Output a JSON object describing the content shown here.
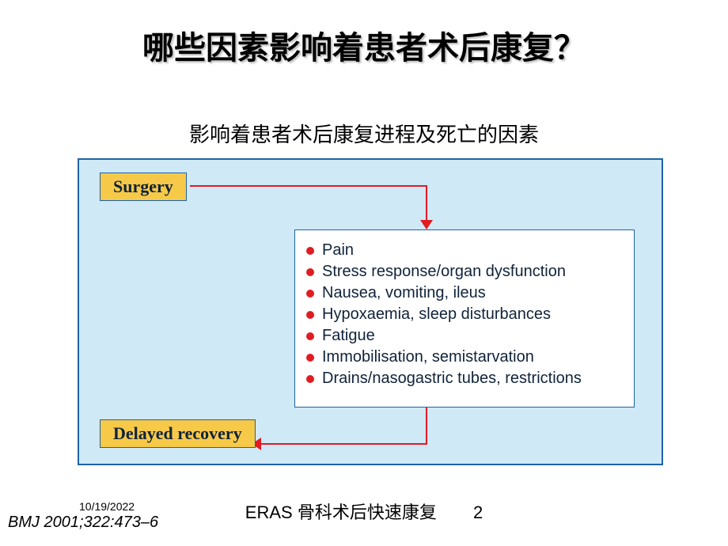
{
  "title": {
    "text": "哪些因素影响着患者术后康复？",
    "fontsize": 40,
    "color": "#000000"
  },
  "subtitle": {
    "text": "影响着患者术后康复进程及死亡的因素",
    "fontsize": 26,
    "color": "#000000"
  },
  "diagram": {
    "panel": {
      "background": "#cfe9f7",
      "border_color": "#1e63a8"
    },
    "surgery_box": {
      "label": "Surgery",
      "background": "#f7c948",
      "border_color": "#1e63a8",
      "text_color": "#10233a"
    },
    "delayed_box": {
      "label": "Delayed recovery",
      "background": "#f7c948",
      "border_color": "#1e63a8",
      "text_color": "#10233a"
    },
    "arrow_color": "#e11b22",
    "factors_box": {
      "background": "#ffffff",
      "border_color": "#1e63a8",
      "bullet_color": "#e11b22",
      "text_color": "#10233a",
      "item_fontsize": 20,
      "items": [
        "Pain",
        "Stress response/organ dysfunction",
        "Nausea, vomiting, ileus",
        "Hypoxaemia, sleep disturbances",
        "Fatigue",
        "Immobilisation, semistarvation",
        "Drains/nasogastric tubes, restrictions"
      ]
    }
  },
  "footer": {
    "date": "10/19/2022",
    "citation": "BMJ 2001;322:473–6",
    "center_text": "ERAS 骨科术后快速康复",
    "page_number": "2"
  }
}
